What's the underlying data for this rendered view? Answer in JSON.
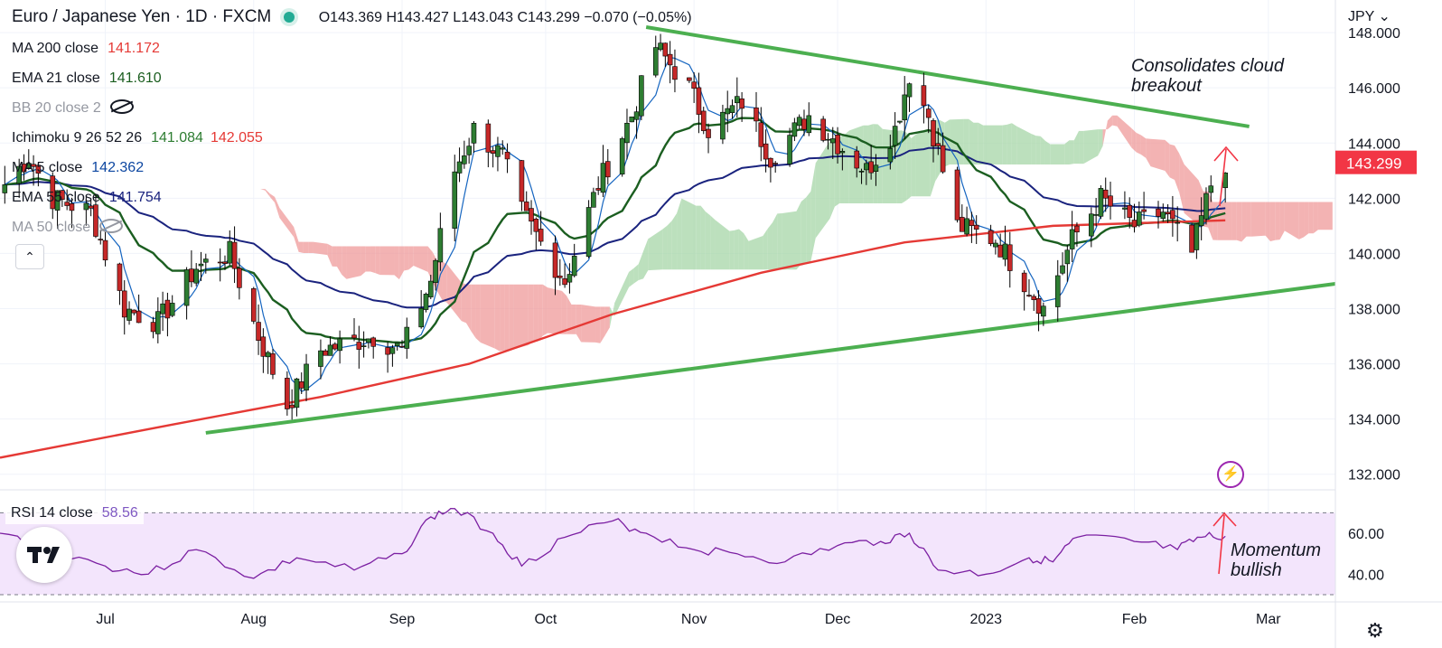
{
  "header": {
    "symbol": "Euro / Japanese Yen · 1D · FXCM",
    "open": "O143.369",
    "high": "H143.427",
    "low": "L143.043",
    "close": "C143.299",
    "change": "−0.070 (−0.05%)"
  },
  "indicators": [
    {
      "label": "MA 200 close",
      "values": [
        "141.172"
      ],
      "colors": [
        "#e53935"
      ]
    },
    {
      "label": "EMA 21 close",
      "values": [
        "141.610"
      ],
      "colors": [
        "#1b5e20"
      ]
    },
    {
      "label": "BB 20 close 2",
      "values": [],
      "colors": [],
      "hidden": true
    },
    {
      "label": "Ichimoku 9 26 52 26",
      "values": [
        "141.084",
        "142.055"
      ],
      "colors": [
        "#2e7d32",
        "#e53935"
      ]
    },
    {
      "label": "MA 5 close",
      "values": [
        "142.362"
      ],
      "colors": [
        "#0d47a1"
      ]
    },
    {
      "label": "EMA 55 close",
      "values": [
        "141.754"
      ],
      "colors": [
        "#1a237e"
      ]
    },
    {
      "label": "MA 50 close",
      "values": [],
      "colors": [],
      "hidden": true
    }
  ],
  "rsi": {
    "label": "RSI 14 close",
    "value": "58.56"
  },
  "currency": "JPY",
  "annotations": {
    "cloud_line1": "Consolidates cloud",
    "cloud_line2": "breakout",
    "rsi_line1": "Momentum",
    "rsi_line2": "bullish"
  },
  "colors": {
    "up": "#2e7d32",
    "down": "#c62828",
    "ma200": "#e53935",
    "ema21": "#1b5e20",
    "ema55": "#1a237e",
    "ma5": "#1565c0",
    "trend": "#4caf50",
    "cloud_bull": "#a5d6a7",
    "cloud_bear": "#ef9a9a",
    "rsi_line": "#7b1fa2",
    "rsi_band": "#f3e5fc",
    "price_tag": "#f23645"
  },
  "chart_data": {
    "type": "candlestick",
    "ylim": [
      131.5,
      148.2
    ],
    "yticks": [
      "148.000",
      "146.000",
      "144.000",
      "142.000",
      "140.000",
      "138.000",
      "136.000",
      "134.000",
      "132.000"
    ],
    "ytick_values": [
      148,
      146,
      144,
      142,
      140,
      138,
      136,
      134,
      132
    ],
    "xticks": [
      "Jul",
      "Aug",
      "Sep",
      "Oct",
      "Nov",
      "Dec",
      "2023",
      "Feb",
      "Mar"
    ],
    "xtick_dates": [
      "2022-07-01",
      "2022-08-01",
      "2022-09-01",
      "2022-10-01",
      "2022-11-01",
      "2022-12-01",
      "2023-01-01",
      "2023-02-01",
      "2023-03-01"
    ],
    "date_range": [
      "2022-06-09",
      "2023-03-15"
    ],
    "last_price_label": "143.299",
    "last_price": 143.299,
    "price_path_dates": [
      "2022-06-10",
      "2022-06-15",
      "2022-06-20",
      "2022-06-28",
      "2022-07-05",
      "2022-07-12",
      "2022-07-20",
      "2022-07-27",
      "2022-08-02",
      "2022-08-08",
      "2022-08-15",
      "2022-08-22",
      "2022-08-26",
      "2022-09-01",
      "2022-09-07",
      "2022-09-12",
      "2022-09-16",
      "2022-09-22",
      "2022-09-26",
      "2022-10-05",
      "2022-10-12",
      "2022-10-19",
      "2022-10-24",
      "2022-10-31",
      "2022-11-04",
      "2022-11-11",
      "2022-11-17",
      "2022-11-25",
      "2022-12-01",
      "2022-12-07",
      "2022-12-13",
      "2022-12-16",
      "2022-12-20",
      "2022-12-26",
      "2023-01-03",
      "2023-01-09",
      "2023-01-13",
      "2023-01-19",
      "2023-01-25",
      "2023-02-01",
      "2023-02-07",
      "2023-02-13",
      "2023-02-17",
      "2023-02-20"
    ],
    "price_path_closes": [
      142.5,
      143.5,
      142.0,
      141.5,
      138.0,
      137.5,
      139.5,
      140.0,
      137.0,
      134.5,
      136.5,
      136.8,
      137.0,
      136.5,
      139.0,
      143.0,
      144.5,
      143.5,
      141.5,
      139.0,
      142.5,
      145.0,
      147.5,
      146.0,
      144.5,
      145.5,
      143.5,
      145.0,
      144.0,
      143.0,
      144.5,
      146.5,
      145.0,
      141.0,
      140.5,
      139.0,
      138.0,
      140.5,
      142.0,
      141.0,
      141.5,
      140.0,
      142.5,
      143.3
    ],
    "ma200_dates": [
      "2022-06-09",
      "2022-07-15",
      "2022-08-15",
      "2022-09-15",
      "2022-10-15",
      "2022-11-15",
      "2022-12-15",
      "2023-01-15",
      "2023-02-20"
    ],
    "ma200_values": [
      132.6,
      133.8,
      134.8,
      136.0,
      137.8,
      139.3,
      140.4,
      141.0,
      141.2
    ],
    "trendline_upper": [
      {
        "date": "2022-10-22",
        "price": 148.2
      },
      {
        "date": "2023-02-25",
        "price": 144.6
      }
    ],
    "trendline_lower": [
      {
        "date": "2022-07-22",
        "price": 133.5
      },
      {
        "date": "2023-03-15",
        "price": 138.9
      }
    ],
    "rsi_ylim": [
      30,
      75
    ],
    "rsi_yticks": [
      "60.00",
      "40.00"
    ],
    "rsi_ytick_values": [
      60,
      40
    ],
    "rsi_band": [
      30,
      70
    ],
    "rsi_path_dates": [
      "2022-06-09",
      "2022-06-20",
      "2022-07-01",
      "2022-07-10",
      "2022-07-20",
      "2022-08-01",
      "2022-08-10",
      "2022-08-22",
      "2022-09-01",
      "2022-09-07",
      "2022-09-12",
      "2022-09-20",
      "2022-09-26",
      "2022-10-05",
      "2022-10-15",
      "2022-10-22",
      "2022-11-01",
      "2022-11-10",
      "2022-11-20",
      "2022-12-01",
      "2022-12-10",
      "2022-12-16",
      "2022-12-22",
      "2023-01-01",
      "2023-01-10",
      "2023-01-15",
      "2023-01-20",
      "2023-02-01",
      "2023-02-10",
      "2023-02-15",
      "2023-02-20"
    ],
    "rsi_path_values": [
      60,
      52,
      44,
      40,
      52,
      38,
      48,
      42,
      50,
      68,
      72,
      60,
      44,
      58,
      66,
      60,
      52,
      50,
      46,
      54,
      56,
      60,
      42,
      40,
      48,
      46,
      58,
      56,
      52,
      58,
      58.56
    ]
  }
}
